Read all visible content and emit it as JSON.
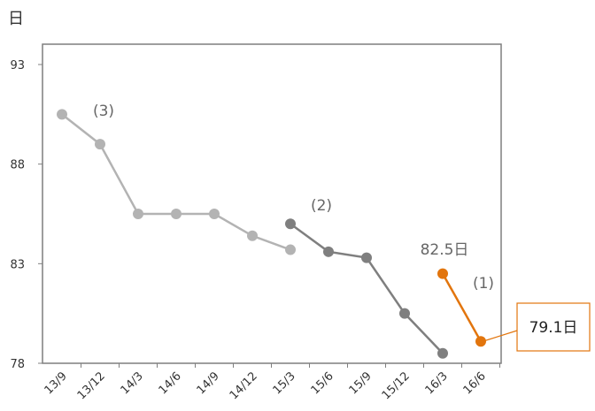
{
  "chart_data": {
    "type": "line",
    "ylabel": "日",
    "ylim": [
      78,
      93
    ],
    "yticks": [
      78,
      83,
      88,
      93
    ],
    "categories": [
      "13/9",
      "13/12",
      "14/3",
      "14/6",
      "14/9",
      "14/12",
      "15/3",
      "15/6",
      "15/9",
      "15/12",
      "16/3",
      "16/6"
    ],
    "grid": false,
    "series": [
      {
        "name": "(3)",
        "color": "#b3b3b3",
        "points": [
          {
            "x": "13/9",
            "y": 90.5
          },
          {
            "x": "13/12",
            "y": 89.0
          },
          {
            "x": "14/3",
            "y": 85.5
          },
          {
            "x": "14/6",
            "y": 85.5
          },
          {
            "x": "14/9",
            "y": 85.5
          },
          {
            "x": "14/12",
            "y": 84.4
          },
          {
            "x": "15/3",
            "y": 83.7
          }
        ]
      },
      {
        "name": "(2)",
        "color": "#7f7f7f",
        "points": [
          {
            "x": "15/3",
            "y": 85.0
          },
          {
            "x": "15/6",
            "y": 83.6
          },
          {
            "x": "15/9",
            "y": 83.3
          },
          {
            "x": "15/12",
            "y": 80.5
          },
          {
            "x": "16/3",
            "y": 78.5
          }
        ]
      },
      {
        "name": "(1)",
        "color": "#e2750d",
        "points": [
          {
            "x": "16/3",
            "y": 82.5
          },
          {
            "x": "16/6",
            "y": 79.1
          }
        ]
      }
    ],
    "annotations": {
      "start_value": "82.5日",
      "end_value": "79.1日"
    }
  }
}
